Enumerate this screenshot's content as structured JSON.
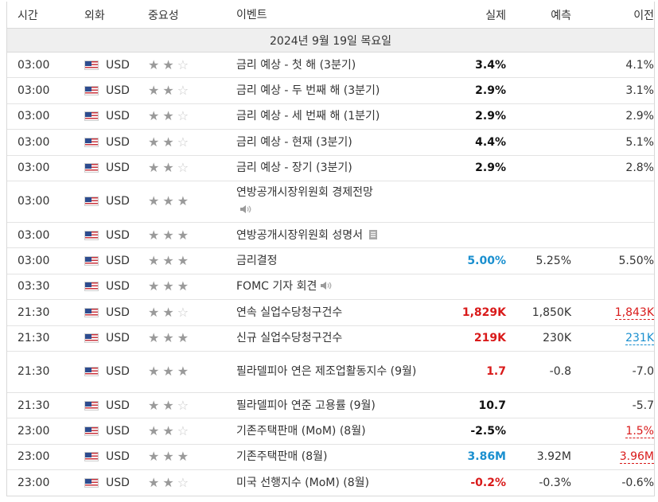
{
  "header": {
    "time": "시간",
    "currency": "외화",
    "importance": "중요성",
    "event": "이벤트",
    "actual": "실제",
    "forecast": "예측",
    "previous": "이전"
  },
  "date_label": "2024년 9월 19일 목요일",
  "colors": {
    "red": "#d91a1a",
    "blue": "#1a8fcf"
  },
  "rows": [
    {
      "time": "03:00",
      "currency": "USD",
      "stars": 2,
      "event": "금리 예상 - 첫 해 (3분기)",
      "icon": "",
      "actual": "3.4%",
      "actual_color": "black",
      "forecast": "",
      "previous": "4.1%",
      "previous_style": ""
    },
    {
      "time": "03:00",
      "currency": "USD",
      "stars": 2,
      "event": "금리 예상 - 두 번째 해 (3분기)",
      "icon": "",
      "actual": "2.9%",
      "actual_color": "black",
      "forecast": "",
      "previous": "3.1%",
      "previous_style": ""
    },
    {
      "time": "03:00",
      "currency": "USD",
      "stars": 2,
      "event": "금리 예상 - 세 번째 해 (1분기)",
      "icon": "",
      "actual": "2.9%",
      "actual_color": "black",
      "forecast": "",
      "previous": "2.9%",
      "previous_style": ""
    },
    {
      "time": "03:00",
      "currency": "USD",
      "stars": 2,
      "event": "금리 예상 - 현재 (3분기)",
      "icon": "",
      "actual": "4.4%",
      "actual_color": "black",
      "forecast": "",
      "previous": "5.1%",
      "previous_style": ""
    },
    {
      "time": "03:00",
      "currency": "USD",
      "stars": 2,
      "event": "금리 예상 - 장기 (3분기)",
      "icon": "",
      "actual": "2.9%",
      "actual_color": "black",
      "forecast": "",
      "previous": "2.8%",
      "previous_style": ""
    },
    {
      "time": "03:00",
      "currency": "USD",
      "stars": 3,
      "event": "연방공개시장위원회 경제전망",
      "icon": "speaker-icon",
      "tall": true,
      "actual": "",
      "actual_color": "black",
      "forecast": "",
      "previous": "",
      "previous_style": ""
    },
    {
      "time": "03:00",
      "currency": "USD",
      "stars": 3,
      "event": "연방공개시장위원회 성명서",
      "icon": "document-icon",
      "actual": "",
      "actual_color": "black",
      "forecast": "",
      "previous": "",
      "previous_style": ""
    },
    {
      "time": "03:00",
      "currency": "USD",
      "stars": 3,
      "event": "금리결정",
      "icon": "",
      "actual": "5.00%",
      "actual_color": "blue",
      "forecast": "5.25%",
      "previous": "5.50%",
      "previous_style": ""
    },
    {
      "time": "03:30",
      "currency": "USD",
      "stars": 3,
      "event": "FOMC 기자 회견",
      "icon": "speaker-icon",
      "actual": "",
      "actual_color": "black",
      "forecast": "",
      "previous": "",
      "previous_style": ""
    },
    {
      "time": "21:30",
      "currency": "USD",
      "stars": 2,
      "event": "연속 실업수당청구건수",
      "icon": "",
      "actual": "1,829K",
      "actual_color": "red",
      "forecast": "1,850K",
      "previous": "1,843K",
      "previous_style": "red"
    },
    {
      "time": "21:30",
      "currency": "USD",
      "stars": 3,
      "event": "신규 실업수당청구건수",
      "icon": "",
      "actual": "219K",
      "actual_color": "red",
      "forecast": "230K",
      "previous": "231K",
      "previous_style": "blue"
    },
    {
      "time": "21:30",
      "currency": "USD",
      "stars": 3,
      "event": "필라델피아 연은 제조업활동지수 (9월)",
      "icon": "",
      "tall": true,
      "actual": "1.7",
      "actual_color": "red",
      "forecast": "-0.8",
      "previous": "-7.0",
      "previous_style": ""
    },
    {
      "time": "21:30",
      "currency": "USD",
      "stars": 2,
      "event": "필라델피아 연준 고용률 (9월)",
      "icon": "",
      "actual": "10.7",
      "actual_color": "black",
      "forecast": "",
      "previous": "-5.7",
      "previous_style": ""
    },
    {
      "time": "23:00",
      "currency": "USD",
      "stars": 2,
      "event": "기존주택판매 (MoM) (8월)",
      "icon": "",
      "actual": "-2.5%",
      "actual_color": "black",
      "forecast": "",
      "previous": "1.5%",
      "previous_style": "red"
    },
    {
      "time": "23:00",
      "currency": "USD",
      "stars": 3,
      "event": "기존주택판매 (8월)",
      "icon": "",
      "actual": "3.86M",
      "actual_color": "blue",
      "forecast": "3.92M",
      "previous": "3.96M",
      "previous_style": "red"
    },
    {
      "time": "23:00",
      "currency": "USD",
      "stars": 2,
      "event": "미국 선행지수 (MoM) (8월)",
      "icon": "",
      "actual": "-0.2%",
      "actual_color": "red",
      "forecast": "-0.3%",
      "previous": "-0.6%",
      "previous_style": ""
    }
  ]
}
